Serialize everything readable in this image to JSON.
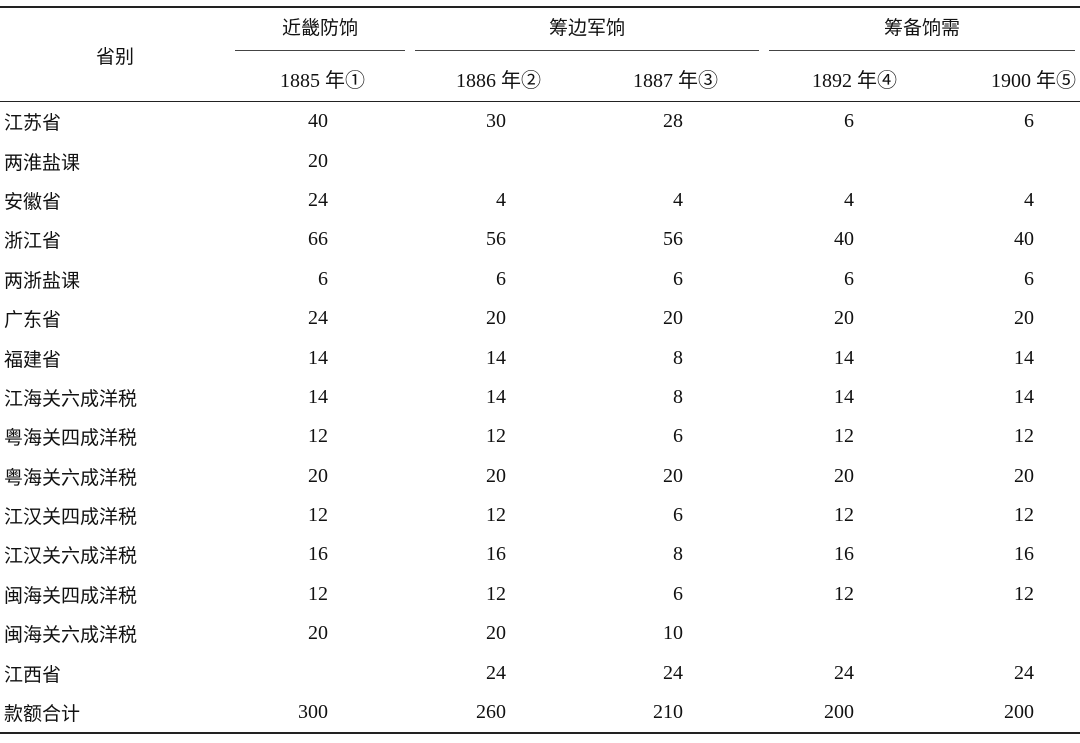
{
  "header": {
    "row_label": "省别",
    "groups": [
      "近畿防饷",
      "筹边军饷",
      "筹备饷需"
    ],
    "years": [
      "1885 年①",
      "1886 年②",
      "1887 年③",
      "1892 年④",
      "1900 年⑤"
    ]
  },
  "rows": [
    {
      "label": "江苏省",
      "values": [
        "40",
        "30",
        "28",
        "6",
        "6"
      ]
    },
    {
      "label": "两淮盐课",
      "values": [
        "20",
        "",
        "",
        "",
        ""
      ]
    },
    {
      "label": "安徽省",
      "values": [
        "24",
        "4",
        "4",
        "4",
        "4"
      ]
    },
    {
      "label": "浙江省",
      "values": [
        "66",
        "56",
        "56",
        "40",
        "40"
      ]
    },
    {
      "label": "两浙盐课",
      "values": [
        "6",
        "6",
        "6",
        "6",
        "6"
      ]
    },
    {
      "label": "广东省",
      "values": [
        "24",
        "20",
        "20",
        "20",
        "20"
      ]
    },
    {
      "label": "福建省",
      "values": [
        "14",
        "14",
        "8",
        "14",
        "14"
      ]
    },
    {
      "label": "江海关六成洋税",
      "values": [
        "14",
        "14",
        "8",
        "14",
        "14"
      ]
    },
    {
      "label": "粤海关四成洋税",
      "values": [
        "12",
        "12",
        "6",
        "12",
        "12"
      ]
    },
    {
      "label": "粤海关六成洋税",
      "values": [
        "20",
        "20",
        "20",
        "20",
        "20"
      ]
    },
    {
      "label": "江汉关四成洋税",
      "values": [
        "12",
        "12",
        "6",
        "12",
        "12"
      ]
    },
    {
      "label": "江汉关六成洋税",
      "values": [
        "16",
        "16",
        "8",
        "16",
        "16"
      ]
    },
    {
      "label": "闽海关四成洋税",
      "values": [
        "12",
        "12",
        "6",
        "12",
        "12"
      ]
    },
    {
      "label": "闽海关六成洋税",
      "values": [
        "20",
        "20",
        "10",
        "",
        ""
      ]
    },
    {
      "label": "江西省",
      "values": [
        "",
        "24",
        "24",
        "24",
        "24"
      ]
    },
    {
      "label": "款额合计",
      "values": [
        "300",
        "260",
        "210",
        "200",
        "200"
      ]
    }
  ]
}
